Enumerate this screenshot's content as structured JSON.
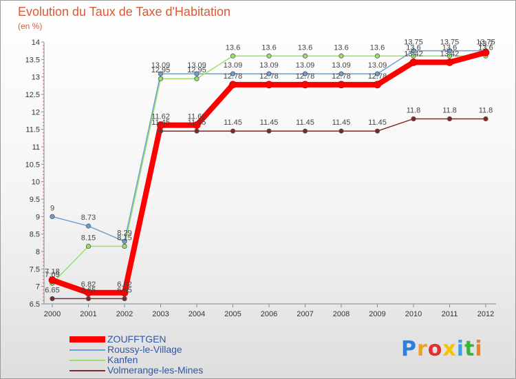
{
  "header": {
    "title": "Evolution du Taux de Taxe d'Habitation",
    "subtitle": "(en %)"
  },
  "chart_data": {
    "type": "line",
    "title": "Evolution du Taux de Taxe d'Habitation",
    "ylabel": "(en %)",
    "xlabel": "",
    "categories": [
      "2000",
      "2001",
      "2002",
      "2003",
      "2004",
      "2005",
      "2006",
      "2007",
      "2008",
      "2009",
      "2010",
      "2011",
      "2012"
    ],
    "ylim": [
      6.5,
      14
    ],
    "yticks": [
      "6.5",
      "7",
      "7.5",
      "8",
      "8.5",
      "9",
      "9.5",
      "10",
      "10.5",
      "11",
      "11.5",
      "12",
      "12.5",
      "13",
      "13.5",
      "14"
    ],
    "grid": false,
    "legend_position": "bottom-left",
    "series": [
      {
        "name": "ZOUFFTGEN",
        "color": "#ff0000",
        "values": [
          7.18,
          6.82,
          6.82,
          11.62,
          11.62,
          12.78,
          12.78,
          12.78,
          12.78,
          12.78,
          13.42,
          13.42,
          13.7
        ],
        "labels": [
          "7.18",
          "6.82",
          "6.82",
          "11.62",
          "11.62",
          "12.78",
          "12.78",
          "12.78",
          "12.78",
          "12.78",
          "13.42",
          "13.42",
          "13.7"
        ]
      },
      {
        "name": "Roussy-le-Village",
        "color": "#6a9fd4",
        "values": [
          9,
          8.73,
          8.29,
          13.09,
          13.09,
          13.09,
          13.09,
          13.09,
          13.09,
          13.09,
          13.75,
          13.75,
          13.75
        ],
        "labels": [
          "9",
          "8.73",
          "8.29",
          "13.09",
          "13.09",
          "13.09",
          "13.09",
          "13.09",
          "13.09",
          "13.09",
          "13.75",
          "13.75",
          "13.75"
        ]
      },
      {
        "name": "Kanfen",
        "color": "#99e066",
        "values": [
          7.09,
          8.15,
          8.15,
          12.95,
          12.95,
          13.6,
          13.6,
          13.6,
          13.6,
          13.6,
          13.6,
          13.6,
          13.6
        ],
        "labels": [
          "7.09",
          "8.15",
          "8.15",
          "12.95",
          "12.95",
          "13.6",
          "13.6",
          "13.6",
          "13.6",
          "13.6",
          "13.6",
          "13.6",
          "13.6"
        ]
      },
      {
        "name": "Volmerange-les-Mines",
        "color": "#7a2a2a",
        "values": [
          6.65,
          6.65,
          6.65,
          11.45,
          11.45,
          11.45,
          11.45,
          11.45,
          11.45,
          11.45,
          11.8,
          11.8,
          11.8
        ],
        "labels": [
          "6.65",
          "6.65",
          "6.65",
          "11.45",
          "11.45",
          "11.45",
          "11.45",
          "11.45",
          "11.45",
          "11.45",
          "11.8",
          "11.8",
          "11.8"
        ]
      }
    ]
  },
  "legend": {
    "items": [
      {
        "label": "ZOUFFTGEN",
        "color": "#ff0000"
      },
      {
        "label": "Roussy-le-Village",
        "color": "#6a9fd4"
      },
      {
        "label": "Kanfen",
        "color": "#99e066"
      },
      {
        "label": "Volmerange-les-Mines",
        "color": "#7a2a2a"
      }
    ]
  },
  "logo": {
    "text": "Proxiti",
    "letters": [
      {
        "char": "P",
        "color": "#2f7fd8"
      },
      {
        "char": "r",
        "color": "#f0a020"
      },
      {
        "char": "o",
        "color": "#e03030"
      },
      {
        "char": "x",
        "color": "#f5c400"
      },
      {
        "char": "i",
        "color": "#3aa0e0"
      },
      {
        "char": "t",
        "color": "#40b040"
      },
      {
        "char": "i",
        "color": "#f08020"
      }
    ]
  }
}
